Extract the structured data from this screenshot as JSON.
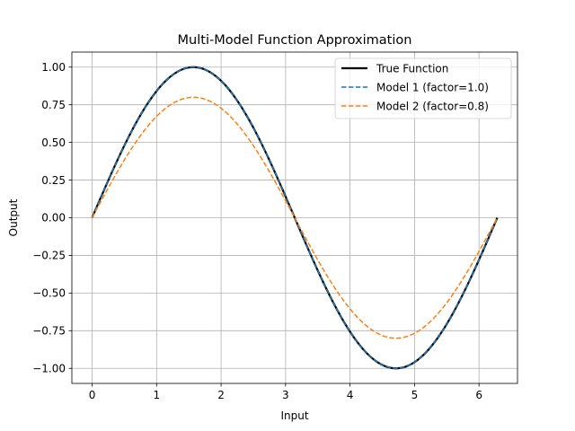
{
  "chart_data": {
    "type": "line",
    "title": "Multi-Model Function Approximation",
    "xlabel": "Input",
    "ylabel": "Output",
    "xlim": [
      -0.314,
      6.597
    ],
    "ylim": [
      -1.1,
      1.1
    ],
    "xticks": [
      0,
      1,
      2,
      3,
      4,
      5,
      6
    ],
    "xtick_labels": [
      "0",
      "1",
      "2",
      "3",
      "4",
      "5",
      "6"
    ],
    "yticks": [
      -1.0,
      -0.75,
      -0.5,
      -0.25,
      0.0,
      0.25,
      0.5,
      0.75,
      1.0
    ],
    "ytick_labels": [
      "−1.00",
      "−0.75",
      "−0.50",
      "−0.25",
      "0.00",
      "0.25",
      "0.50",
      "0.75",
      "1.00"
    ],
    "grid": true,
    "legend_position": "top-right",
    "x_range": [
      0,
      6.283
    ],
    "series": [
      {
        "name": "True Function",
        "expression": "sin(x)",
        "amplitude": 1.0,
        "color": "#000000",
        "style": "solid"
      },
      {
        "name": "Model 1 (factor=1.0)",
        "expression": "1.0*sin(x)",
        "amplitude": 1.0,
        "color": "#1f77b4",
        "style": "dashed"
      },
      {
        "name": "Model 2 (factor=0.8)",
        "expression": "0.8*sin(x)",
        "amplitude": 0.8,
        "color": "#ff7f0e",
        "style": "dashed"
      }
    ],
    "sample_points": {
      "x": [
        0,
        0.785,
        1.571,
        2.356,
        3.142,
        3.927,
        4.712,
        5.498,
        6.283
      ],
      "true_function": [
        0,
        0.707,
        1.0,
        0.707,
        0,
        -0.707,
        -1.0,
        -0.707,
        0
      ],
      "model_1": [
        0,
        0.707,
        1.0,
        0.707,
        0,
        -0.707,
        -1.0,
        -0.707,
        0
      ],
      "model_2": [
        0,
        0.566,
        0.8,
        0.566,
        0,
        -0.566,
        -0.8,
        -0.566,
        0
      ]
    }
  }
}
